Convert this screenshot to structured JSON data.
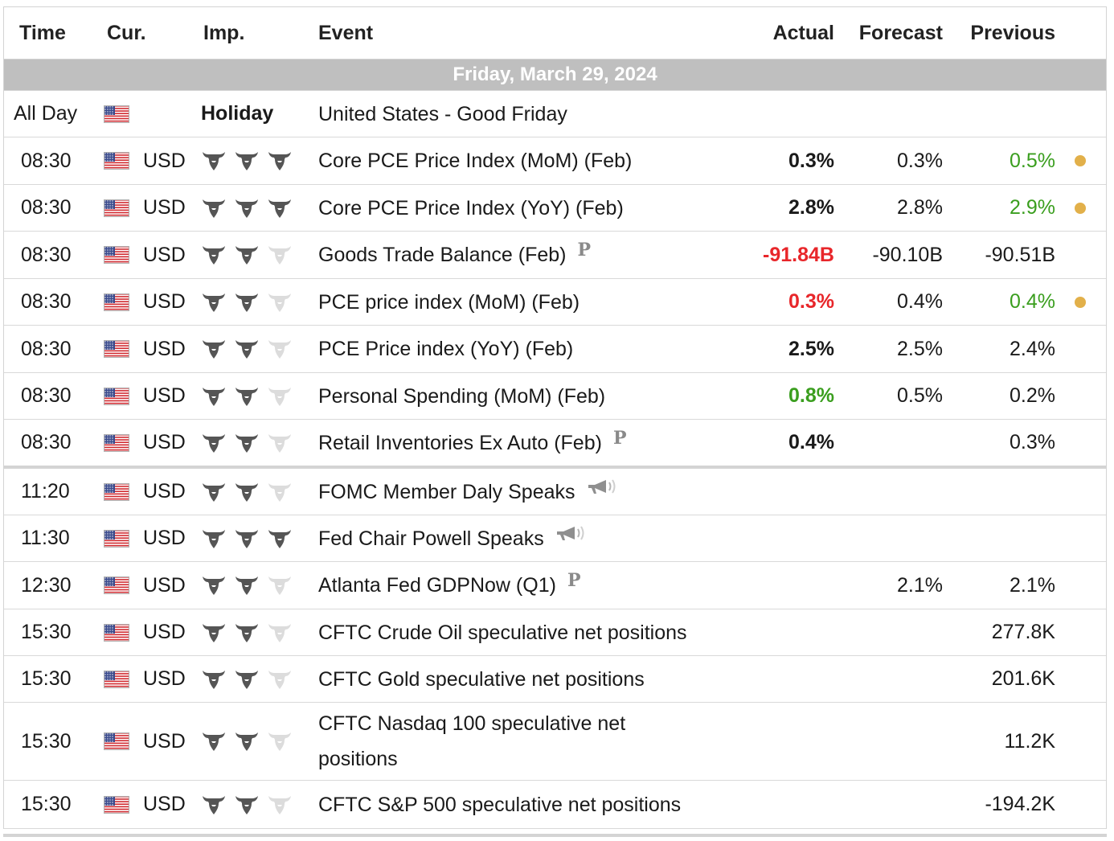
{
  "header": {
    "time": "Time",
    "currency": "Cur.",
    "importance": "Imp.",
    "event": "Event",
    "actual": "Actual",
    "forecast": "Forecast",
    "previous": "Previous"
  },
  "day_label": "Friday, March 29, 2024",
  "colors": {
    "bull_on": "#555555",
    "bull_off": "#dcdcdc",
    "negative": "#e8262a",
    "positive": "#3a9e1e",
    "revised_dot": "#e2b04a",
    "day_bar": "#bfbfbf"
  },
  "rows": [
    {
      "time": "All Day",
      "currency": "",
      "flag": "us-flag-icon",
      "importance_label": "Holiday",
      "event": "United States - Good Friday",
      "actual": "",
      "forecast": "",
      "previous": ""
    },
    {
      "time": "08:30",
      "currency": "USD",
      "flag": "us-flag-icon",
      "importance": 3,
      "event": "Core PCE Price Index (MoM) (Feb)",
      "actual": "0.3%",
      "actual_style": "bold",
      "forecast": "0.3%",
      "previous": "0.5%",
      "previous_style": "green",
      "revised": true
    },
    {
      "time": "08:30",
      "currency": "USD",
      "flag": "us-flag-icon",
      "importance": 3,
      "event": "Core PCE Price Index (YoY) (Feb)",
      "actual": "2.8%",
      "actual_style": "bold",
      "forecast": "2.8%",
      "previous": "2.9%",
      "previous_style": "green",
      "revised": true
    },
    {
      "time": "08:30",
      "currency": "USD",
      "flag": "us-flag-icon",
      "importance": 2,
      "event": "Goods Trade Balance (Feb)",
      "icon": "P",
      "actual": "-91.84B",
      "actual_style": "red",
      "forecast": "-90.10B",
      "previous": "-90.51B",
      "previous_style": "plain",
      "revised": false
    },
    {
      "time": "08:30",
      "currency": "USD",
      "flag": "us-flag-icon",
      "importance": 2,
      "event": "PCE price index (MoM) (Feb)",
      "actual": "0.3%",
      "actual_style": "red",
      "forecast": "0.4%",
      "previous": "0.4%",
      "previous_style": "green",
      "revised": true
    },
    {
      "time": "08:30",
      "currency": "USD",
      "flag": "us-flag-icon",
      "importance": 2,
      "event": "PCE Price index (YoY) (Feb)",
      "actual": "2.5%",
      "actual_style": "bold",
      "forecast": "2.5%",
      "previous": "2.4%",
      "previous_style": "plain",
      "revised": false
    },
    {
      "time": "08:30",
      "currency": "USD",
      "flag": "us-flag-icon",
      "importance": 2,
      "event": "Personal Spending (MoM) (Feb)",
      "actual": "0.8%",
      "actual_style": "green",
      "forecast": "0.5%",
      "previous": "0.2%",
      "previous_style": "plain",
      "revised": false
    },
    {
      "time": "08:30",
      "currency": "USD",
      "flag": "us-flag-icon",
      "importance": 2,
      "event": "Retail Inventories Ex Auto (Feb)",
      "icon": "P",
      "actual": "0.4%",
      "actual_style": "bold",
      "forecast": "",
      "previous": "0.3%",
      "previous_style": "plain",
      "revised": false
    },
    {
      "time": "11:20",
      "currency": "USD",
      "flag": "us-flag-icon",
      "importance": 2,
      "event": "FOMC Member Daly Speaks",
      "icon": "speech",
      "actual": "",
      "forecast": "",
      "previous": ""
    },
    {
      "time": "11:30",
      "currency": "USD",
      "flag": "us-flag-icon",
      "importance": 3,
      "event": "Fed Chair Powell Speaks",
      "icon": "speech",
      "actual": "",
      "forecast": "",
      "previous": ""
    },
    {
      "time": "12:30",
      "currency": "USD",
      "flag": "us-flag-icon",
      "importance": 2,
      "event": "Atlanta Fed GDPNow (Q1)",
      "icon": "P",
      "actual": "",
      "forecast": "2.1%",
      "previous": "2.1%",
      "previous_style": "plain"
    },
    {
      "time": "15:30",
      "currency": "USD",
      "flag": "us-flag-icon",
      "importance": 2,
      "event": "CFTC Crude Oil speculative net positions",
      "actual": "",
      "forecast": "",
      "previous": "277.8K",
      "previous_style": "plain"
    },
    {
      "time": "15:30",
      "currency": "USD",
      "flag": "us-flag-icon",
      "importance": 2,
      "event": "CFTC Gold speculative net positions",
      "actual": "",
      "forecast": "",
      "previous": "201.6K",
      "previous_style": "plain"
    },
    {
      "time": "15:30",
      "currency": "USD",
      "flag": "us-flag-icon",
      "importance": 2,
      "event": "CFTC Nasdaq 100 speculative net positions",
      "event_line1": "CFTC Nasdaq 100 speculative net",
      "event_line2": "positions",
      "actual": "",
      "forecast": "",
      "previous": "11.2K",
      "previous_style": "plain"
    },
    {
      "time": "15:30",
      "currency": "USD",
      "flag": "us-flag-icon",
      "importance": 2,
      "event": "CFTC S&P 500 speculative net positions",
      "actual": "",
      "forecast": "",
      "previous": "-194.2K",
      "previous_style": "plain"
    }
  ]
}
